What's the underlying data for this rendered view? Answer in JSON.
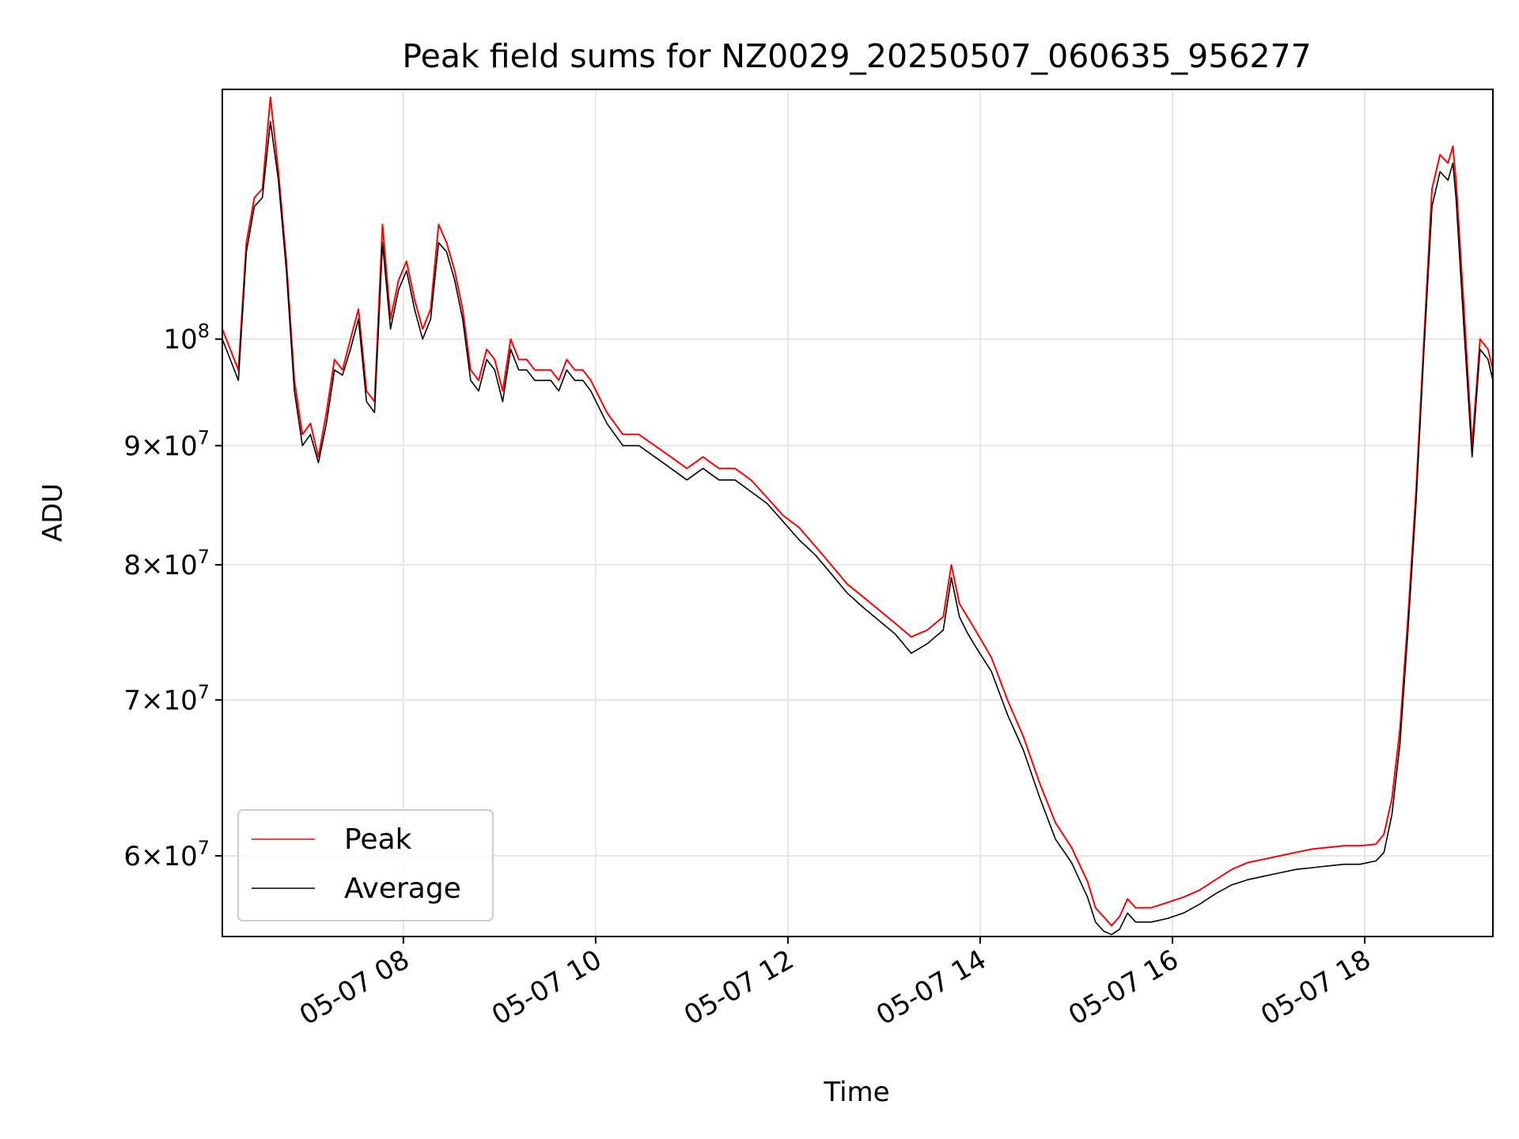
{
  "chart_data": {
    "type": "line",
    "title": "Peak field sums for NZ0029_20250507_060635_956277",
    "xlabel": "Time",
    "ylabel": "ADU",
    "y_scale": "log",
    "xlim": [
      "2025-05-07 06:07",
      "2025-05-07 19:20"
    ],
    "ylim": [
      55400000,
      128000000
    ],
    "grid": true,
    "legend_position": "lower-left",
    "x_tick_labels": [
      "05-07 08",
      "05-07 10",
      "05-07 12",
      "05-07 14",
      "05-07 16",
      "05-07 18"
    ],
    "x_tick_values": [
      "2025-05-07 08:00",
      "2025-05-07 10:00",
      "2025-05-07 12:00",
      "2025-05-07 14:00",
      "2025-05-07 16:00",
      "2025-05-07 18:00"
    ],
    "y_ticks": [
      {
        "value": 60000000,
        "mantissa": "6",
        "exponent": "7"
      },
      {
        "value": 70000000,
        "mantissa": "7",
        "exponent": "7"
      },
      {
        "value": 80000000,
        "mantissa": "8",
        "exponent": "7"
      },
      {
        "value": 90000000,
        "mantissa": "9",
        "exponent": "7"
      },
      {
        "value": 100000000,
        "mantissa": "",
        "exponent": "8"
      }
    ],
    "series": [
      {
        "name": "Peak",
        "color": "#ff0000",
        "x": [
          "06:07",
          "06:12",
          "06:17",
          "06:22",
          "06:27",
          "06:32",
          "06:37",
          "06:42",
          "06:47",
          "06:52",
          "06:57",
          "07:02",
          "07:07",
          "07:12",
          "07:17",
          "07:22",
          "07:27",
          "07:32",
          "07:37",
          "07:42",
          "07:47",
          "07:52",
          "07:57",
          "08:02",
          "08:07",
          "08:12",
          "08:17",
          "08:22",
          "08:27",
          "08:32",
          "08:37",
          "08:42",
          "08:47",
          "08:52",
          "08:57",
          "09:02",
          "09:07",
          "09:12",
          "09:17",
          "09:22",
          "09:27",
          "09:32",
          "09:37",
          "09:42",
          "09:47",
          "09:52",
          "09:57",
          "10:07",
          "10:17",
          "10:27",
          "10:37",
          "10:47",
          "10:57",
          "11:07",
          "11:17",
          "11:27",
          "11:37",
          "11:47",
          "11:57",
          "12:07",
          "12:17",
          "12:27",
          "12:37",
          "12:47",
          "12:57",
          "13:07",
          "13:17",
          "13:27",
          "13:37",
          "13:42",
          "13:47",
          "13:52",
          "13:57",
          "14:07",
          "14:17",
          "14:27",
          "14:37",
          "14:47",
          "14:57",
          "15:07",
          "15:12",
          "15:17",
          "15:22",
          "15:27",
          "15:32",
          "15:37",
          "15:47",
          "15:57",
          "16:07",
          "16:17",
          "16:27",
          "16:37",
          "16:47",
          "16:57",
          "17:07",
          "17:17",
          "17:27",
          "17:37",
          "17:47",
          "17:57",
          "18:07",
          "18:12",
          "18:17",
          "18:22",
          "18:27",
          "18:32",
          "18:37",
          "18:42",
          "18:47",
          "18:52",
          "18:55",
          "18:57",
          "19:02",
          "19:07",
          "19:12",
          "19:17",
          "19:20"
        ],
        "y": [
          101000000,
          99000000,
          97000000,
          110000000,
          115000000,
          116000000,
          127000000,
          118000000,
          108000000,
          96000000,
          91000000,
          92000000,
          89000000,
          93000000,
          98000000,
          97000000,
          100000000,
          103000000,
          95000000,
          94000000,
          112000000,
          102000000,
          106000000,
          108000000,
          104000000,
          101000000,
          103000000,
          112000000,
          110000000,
          107000000,
          103000000,
          97000000,
          96000000,
          99000000,
          98000000,
          95000000,
          100000000,
          98000000,
          98000000,
          97000000,
          97000000,
          97000000,
          96000000,
          98000000,
          97000000,
          97000000,
          96000000,
          93000000,
          91000000,
          91000000,
          90000000,
          89000000,
          88000000,
          89000000,
          88000000,
          88000000,
          87000000,
          85500000,
          84000000,
          83000000,
          81500000,
          80000000,
          78500000,
          77500000,
          76500000,
          75500000,
          74500000,
          75000000,
          76000000,
          80000000,
          77000000,
          76000000,
          75000000,
          73000000,
          70000000,
          67500000,
          64500000,
          62000000,
          60500000,
          58500000,
          57000000,
          56500000,
          56000000,
          56500000,
          57500000,
          57000000,
          57000000,
          57300000,
          57600000,
          58000000,
          58600000,
          59200000,
          59600000,
          59800000,
          60000000,
          60200000,
          60400000,
          60500000,
          60600000,
          60600000,
          60700000,
          61300000,
          63500000,
          68000000,
          76000000,
          86000000,
          100000000,
          116000000,
          120000000,
          119000000,
          121000000,
          117000000,
          103000000,
          90000000,
          100000000,
          99000000,
          97000000
        ]
      },
      {
        "name": "Average",
        "color": "#000000",
        "x": [
          "06:07",
          "06:12",
          "06:17",
          "06:22",
          "06:27",
          "06:32",
          "06:37",
          "06:42",
          "06:47",
          "06:52",
          "06:57",
          "07:02",
          "07:07",
          "07:12",
          "07:17",
          "07:22",
          "07:27",
          "07:32",
          "07:37",
          "07:42",
          "07:47",
          "07:52",
          "07:57",
          "08:02",
          "08:07",
          "08:12",
          "08:17",
          "08:22",
          "08:27",
          "08:32",
          "08:37",
          "08:42",
          "08:47",
          "08:52",
          "08:57",
          "09:02",
          "09:07",
          "09:12",
          "09:17",
          "09:22",
          "09:27",
          "09:32",
          "09:37",
          "09:42",
          "09:47",
          "09:52",
          "09:57",
          "10:07",
          "10:17",
          "10:27",
          "10:37",
          "10:47",
          "10:57",
          "11:07",
          "11:17",
          "11:27",
          "11:37",
          "11:47",
          "11:57",
          "12:07",
          "12:17",
          "12:27",
          "12:37",
          "12:47",
          "12:57",
          "13:07",
          "13:17",
          "13:27",
          "13:37",
          "13:42",
          "13:47",
          "13:52",
          "13:57",
          "14:07",
          "14:17",
          "14:27",
          "14:37",
          "14:47",
          "14:57",
          "15:07",
          "15:12",
          "15:17",
          "15:22",
          "15:27",
          "15:32",
          "15:37",
          "15:47",
          "15:57",
          "16:07",
          "16:17",
          "16:27",
          "16:37",
          "16:47",
          "16:57",
          "17:07",
          "17:17",
          "17:27",
          "17:37",
          "17:47",
          "17:57",
          "18:07",
          "18:12",
          "18:17",
          "18:22",
          "18:27",
          "18:32",
          "18:37",
          "18:42",
          "18:47",
          "18:52",
          "18:55",
          "18:57",
          "19:02",
          "19:07",
          "19:12",
          "19:17",
          "19:20"
        ],
        "y": [
          100000000,
          98000000,
          96000000,
          109000000,
          114000000,
          115000000,
          124000000,
          117000000,
          107000000,
          95000000,
          90000000,
          91000000,
          88500000,
          92000000,
          97000000,
          96500000,
          99000000,
          102000000,
          94000000,
          93000000,
          110000000,
          101000000,
          105000000,
          107000000,
          103000000,
          100000000,
          102000000,
          110000000,
          109000000,
          106000000,
          102000000,
          96000000,
          95000000,
          98000000,
          97000000,
          94000000,
          99000000,
          97000000,
          97000000,
          96000000,
          96000000,
          96000000,
          95000000,
          97000000,
          96000000,
          96000000,
          95000000,
          92000000,
          90000000,
          90000000,
          89000000,
          88000000,
          87000000,
          88000000,
          87000000,
          87000000,
          86000000,
          85000000,
          83500000,
          82000000,
          80800000,
          79300000,
          77800000,
          76700000,
          75700000,
          74700000,
          73300000,
          74000000,
          75000000,
          79000000,
          76000000,
          74800000,
          73800000,
          72000000,
          69000000,
          66600000,
          63600000,
          61000000,
          59600000,
          57600000,
          56200000,
          55700000,
          55500000,
          55800000,
          56700000,
          56200000,
          56200000,
          56400000,
          56700000,
          57200000,
          57800000,
          58300000,
          58600000,
          58800000,
          59000000,
          59200000,
          59300000,
          59400000,
          59500000,
          59500000,
          59700000,
          60200000,
          62500000,
          67000000,
          75000000,
          85000000,
          99000000,
          114000000,
          118000000,
          117000000,
          119000000,
          115000000,
          101000000,
          89000000,
          99000000,
          98000000,
          96000000
        ]
      }
    ]
  }
}
